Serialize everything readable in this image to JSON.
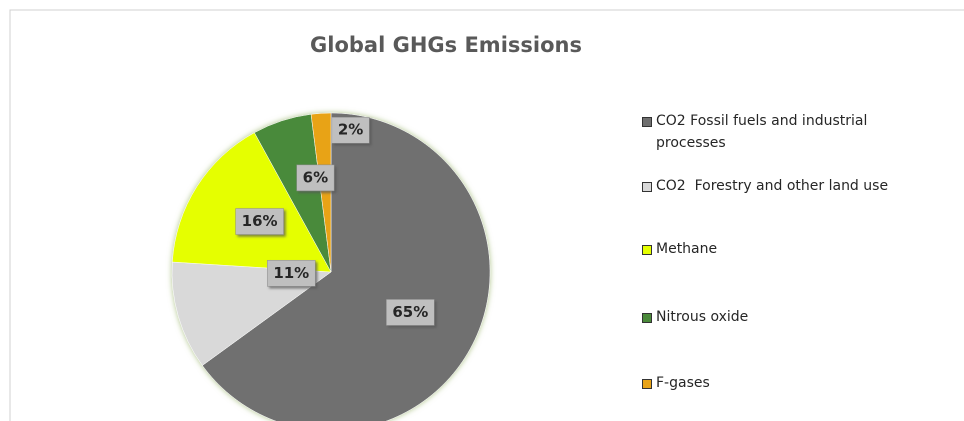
{
  "chart_data": {
    "type": "pie",
    "title": "Global GHGs Emissions",
    "categories": [
      "CO2 Fossil fuels and industrial processes",
      "CO2  Forestry and other land use",
      "Methane",
      "Nitrous oxide",
      "F-gases"
    ],
    "values": [
      65,
      11,
      16,
      6,
      2
    ],
    "value_labels": [
      "65%",
      "11%",
      "16%",
      "6%",
      "2%"
    ],
    "colors": [
      "#6f6f6f",
      "#d9d9d9",
      "#e5ff00",
      "#4a8a3a",
      "#e8a317"
    ],
    "legend": "right"
  }
}
